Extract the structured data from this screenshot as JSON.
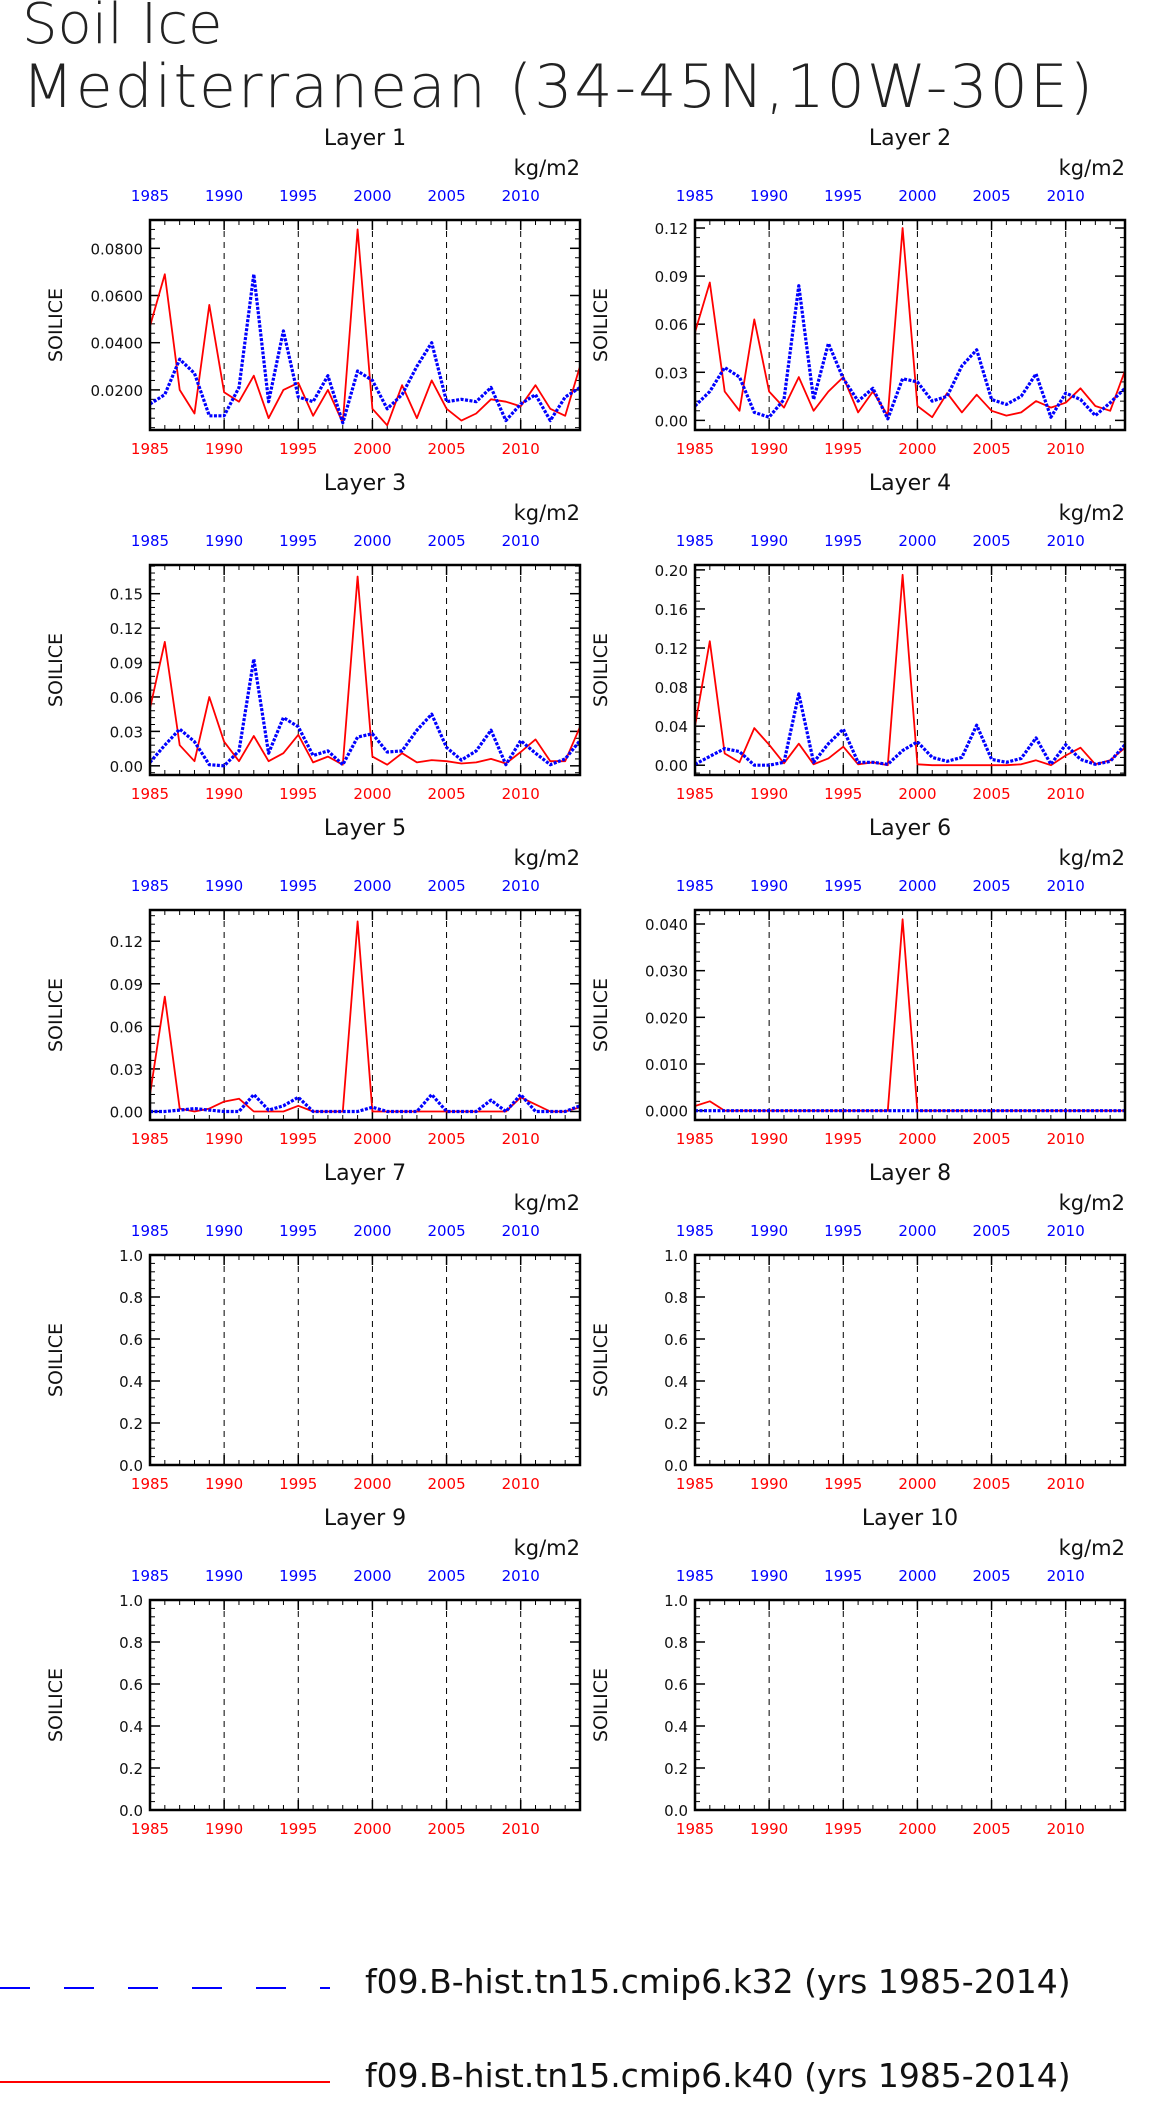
{
  "title": "Soil Ice",
  "subtitle": "Mediterranean (34-45N,10W-30E)",
  "legend": [
    {
      "label": "f09.B-hist.tn15.cmip6.k32 (yrs 1985-2014)",
      "color": "#0000ff",
      "style": "dashed"
    },
    {
      "label": "f09.B-hist.tn15.cmip6.k40 (yrs 1985-2014)",
      "color": "#ff0000",
      "style": "solid"
    }
  ],
  "chart_data": [
    {
      "type": "line",
      "title": "Layer 1",
      "ylabel": "SOILICE",
      "units": "kg/m2",
      "xlim": [
        1985,
        2014
      ],
      "ylim": [
        0.003,
        0.092
      ],
      "yticks": [
        0.02,
        0.04,
        0.06,
        0.08
      ],
      "ytick_labels": [
        "0.0200",
        "0.0400",
        "0.0600",
        "0.0800"
      ],
      "xticks": [
        1985,
        1990,
        1995,
        2000,
        2005,
        2010
      ],
      "x": [
        1985,
        1986,
        1987,
        1988,
        1989,
        1990,
        1991,
        1992,
        1993,
        1994,
        1995,
        1996,
        1997,
        1998,
        1999,
        2000,
        2001,
        2002,
        2003,
        2004,
        2005,
        2006,
        2007,
        2008,
        2009,
        2010,
        2011,
        2012,
        2013,
        2014
      ],
      "series": [
        {
          "name": "f09.B-hist.tn15.cmip6.k32 (yrs 1985-2014)",
          "color": "#0000ff",
          "values": [
            0.014,
            0.018,
            0.033,
            0.027,
            0.009,
            0.009,
            0.021,
            0.069,
            0.015,
            0.045,
            0.017,
            0.015,
            0.026,
            0.006,
            0.028,
            0.024,
            0.012,
            0.018,
            0.03,
            0.04,
            0.015,
            0.016,
            0.015,
            0.021,
            0.007,
            0.014,
            0.018,
            0.007,
            0.017,
            0.021
          ]
        },
        {
          "name": "f09.B-hist.tn15.cmip6.k40 (yrs 1985-2014)",
          "color": "#ff0000",
          "values": [
            0.047,
            0.069,
            0.02,
            0.01,
            0.056,
            0.019,
            0.015,
            0.026,
            0.008,
            0.02,
            0.023,
            0.009,
            0.02,
            0.006,
            0.088,
            0.012,
            0.005,
            0.022,
            0.008,
            0.024,
            0.012,
            0.007,
            0.01,
            0.016,
            0.015,
            0.013,
            0.022,
            0.012,
            0.009,
            0.03
          ]
        }
      ]
    },
    {
      "type": "line",
      "title": "Layer 2",
      "ylabel": "SOILICE",
      "units": "kg/m2",
      "xlim": [
        1985,
        2014
      ],
      "ylim": [
        -0.006,
        0.125
      ],
      "yticks": [
        0,
        0.03,
        0.06,
        0.09,
        0.12
      ],
      "ytick_labels": [
        "0.00",
        "0.03",
        "0.06",
        "0.09",
        "0.12"
      ],
      "xticks": [
        1985,
        1990,
        1995,
        2000,
        2005,
        2010
      ],
      "x": [
        1985,
        1986,
        1987,
        1988,
        1989,
        1990,
        1991,
        1992,
        1993,
        1994,
        1995,
        1996,
        1997,
        1998,
        1999,
        2000,
        2001,
        2002,
        2003,
        2004,
        2005,
        2006,
        2007,
        2008,
        2009,
        2010,
        2011,
        2012,
        2013,
        2014
      ],
      "series": [
        {
          "name": "f09.B-hist.tn15.cmip6.k32 (yrs 1985-2014)",
          "color": "#0000ff",
          "values": [
            0.009,
            0.018,
            0.033,
            0.027,
            0.005,
            0.002,
            0.013,
            0.084,
            0.013,
            0.048,
            0.026,
            0.012,
            0.02,
            0.001,
            0.026,
            0.024,
            0.012,
            0.015,
            0.034,
            0.044,
            0.013,
            0.01,
            0.015,
            0.029,
            0.002,
            0.017,
            0.013,
            0.003,
            0.011,
            0.02
          ]
        },
        {
          "name": "f09.B-hist.tn15.cmip6.k40 (yrs 1985-2014)",
          "color": "#ff0000",
          "values": [
            0.055,
            0.086,
            0.018,
            0.006,
            0.063,
            0.018,
            0.008,
            0.027,
            0.006,
            0.018,
            0.027,
            0.005,
            0.018,
            0.003,
            0.12,
            0.009,
            0.002,
            0.017,
            0.005,
            0.016,
            0.006,
            0.003,
            0.005,
            0.012,
            0.008,
            0.011,
            0.02,
            0.009,
            0.006,
            0.031
          ]
        }
      ]
    },
    {
      "type": "line",
      "title": "Layer 3",
      "ylabel": "SOILICE",
      "units": "kg/m2",
      "xlim": [
        1985,
        2014
      ],
      "ylim": [
        -0.008,
        0.175
      ],
      "yticks": [
        0,
        0.03,
        0.06,
        0.09,
        0.12,
        0.15
      ],
      "ytick_labels": [
        "0.00",
        "0.03",
        "0.06",
        "0.09",
        "0.12",
        "0.15"
      ],
      "xticks": [
        1985,
        1990,
        1995,
        2000,
        2005,
        2010
      ],
      "x": [
        1985,
        1986,
        1987,
        1988,
        1989,
        1990,
        1991,
        1992,
        1993,
        1994,
        1995,
        1996,
        1997,
        1998,
        1999,
        2000,
        2001,
        2002,
        2003,
        2004,
        2005,
        2006,
        2007,
        2008,
        2009,
        2010,
        2011,
        2012,
        2013,
        2014
      ],
      "series": [
        {
          "name": "f09.B-hist.tn15.cmip6.k32 (yrs 1985-2014)",
          "color": "#0000ff",
          "values": [
            0.003,
            0.018,
            0.032,
            0.021,
            0.001,
            0.0,
            0.013,
            0.093,
            0.011,
            0.042,
            0.034,
            0.009,
            0.013,
            0.001,
            0.025,
            0.028,
            0.012,
            0.013,
            0.031,
            0.045,
            0.016,
            0.005,
            0.013,
            0.031,
            0.001,
            0.022,
            0.011,
            0.001,
            0.006,
            0.022
          ]
        },
        {
          "name": "f09.B-hist.tn15.cmip6.k40 (yrs 1985-2014)",
          "color": "#ff0000",
          "values": [
            0.05,
            0.108,
            0.018,
            0.004,
            0.06,
            0.021,
            0.004,
            0.026,
            0.004,
            0.011,
            0.027,
            0.003,
            0.008,
            0.001,
            0.165,
            0.008,
            0.001,
            0.011,
            0.003,
            0.005,
            0.004,
            0.002,
            0.003,
            0.006,
            0.002,
            0.012,
            0.023,
            0.004,
            0.004,
            0.034
          ]
        }
      ]
    },
    {
      "type": "line",
      "title": "Layer 4",
      "ylabel": "SOILICE",
      "units": "kg/m2",
      "xlim": [
        1985,
        2014
      ],
      "ylim": [
        -0.01,
        0.205
      ],
      "yticks": [
        0,
        0.04,
        0.08,
        0.12,
        0.16,
        0.2
      ],
      "ytick_labels": [
        "0.00",
        "0.04",
        "0.08",
        "0.12",
        "0.16",
        "0.20"
      ],
      "xticks": [
        1985,
        1990,
        1995,
        2000,
        2005,
        2010
      ],
      "x": [
        1985,
        1986,
        1987,
        1988,
        1989,
        1990,
        1991,
        1992,
        1993,
        1994,
        1995,
        1996,
        1997,
        1998,
        1999,
        2000,
        2001,
        2002,
        2003,
        2004,
        2005,
        2006,
        2007,
        2008,
        2009,
        2010,
        2011,
        2012,
        2013,
        2014
      ],
      "series": [
        {
          "name": "f09.B-hist.tn15.cmip6.k32 (yrs 1985-2014)",
          "color": "#0000ff",
          "values": [
            0.001,
            0.009,
            0.017,
            0.014,
            0.0,
            0.0,
            0.003,
            0.073,
            0.003,
            0.022,
            0.037,
            0.003,
            0.003,
            0.001,
            0.015,
            0.024,
            0.008,
            0.004,
            0.008,
            0.041,
            0.006,
            0.003,
            0.007,
            0.028,
            0.001,
            0.021,
            0.006,
            0.001,
            0.004,
            0.021
          ]
        },
        {
          "name": "f09.B-hist.tn15.cmip6.k40 (yrs 1985-2014)",
          "color": "#ff0000",
          "values": [
            0.04,
            0.127,
            0.012,
            0.003,
            0.038,
            0.021,
            0.002,
            0.022,
            0.001,
            0.007,
            0.019,
            0.001,
            0.003,
            0.0,
            0.195,
            0.001,
            0.0,
            0.0,
            0.0,
            0.0,
            0.0,
            0.0,
            0.001,
            0.005,
            0.0,
            0.01,
            0.018,
            0.001,
            0.005,
            0.018
          ]
        }
      ]
    },
    {
      "type": "line",
      "title": "Layer 5",
      "ylabel": "SOILICE",
      "units": "kg/m2",
      "xlim": [
        1985,
        2014
      ],
      "ylim": [
        -0.006,
        0.142
      ],
      "yticks": [
        0,
        0.03,
        0.06,
        0.09,
        0.12
      ],
      "ytick_labels": [
        "0.00",
        "0.03",
        "0.06",
        "0.09",
        "0.12"
      ],
      "xticks": [
        1985,
        1990,
        1995,
        2000,
        2005,
        2010
      ],
      "x": [
        1985,
        1986,
        1987,
        1988,
        1989,
        1990,
        1991,
        1992,
        1993,
        1994,
        1995,
        1996,
        1997,
        1998,
        1999,
        2000,
        2001,
        2002,
        2003,
        2004,
        2005,
        2006,
        2007,
        2008,
        2009,
        2010,
        2011,
        2012,
        2013,
        2014
      ],
      "series": [
        {
          "name": "f09.B-hist.tn15.cmip6.k32 (yrs 1985-2014)",
          "color": "#0000ff",
          "values": [
            0.0,
            0.0,
            0.001,
            0.002,
            0.001,
            0.0,
            0.0,
            0.012,
            0.001,
            0.004,
            0.01,
            0.0,
            0.0,
            0.0,
            0.0,
            0.003,
            0.0,
            0.0,
            0.0,
            0.012,
            0.0,
            0.0,
            0.0,
            0.008,
            0.0,
            0.012,
            0.0,
            0.0,
            0.0,
            0.004
          ]
        },
        {
          "name": "f09.B-hist.tn15.cmip6.k40 (yrs 1985-2014)",
          "color": "#ff0000",
          "values": [
            0.012,
            0.081,
            0.002,
            0.0,
            0.002,
            0.007,
            0.009,
            0.0,
            0.0,
            0.0,
            0.004,
            0.0,
            0.0,
            0.0,
            0.134,
            0.0,
            0.0,
            0.0,
            0.0,
            0.0,
            0.0,
            0.0,
            0.0,
            0.0,
            0.0,
            0.01,
            0.005,
            0.0,
            0.0,
            0.003
          ]
        }
      ]
    },
    {
      "type": "line",
      "title": "Layer 6",
      "ylabel": "SOILICE",
      "units": "kg/m2",
      "xlim": [
        1985,
        2014
      ],
      "ylim": [
        -0.002,
        0.043
      ],
      "yticks": [
        0,
        0.01,
        0.02,
        0.03,
        0.04
      ],
      "ytick_labels": [
        "0.000",
        "0.010",
        "0.020",
        "0.030",
        "0.040"
      ],
      "xticks": [
        1985,
        1990,
        1995,
        2000,
        2005,
        2010
      ],
      "x": [
        1985,
        1986,
        1987,
        1988,
        1989,
        1990,
        1991,
        1992,
        1993,
        1994,
        1995,
        1996,
        1997,
        1998,
        1999,
        2000,
        2001,
        2002,
        2003,
        2004,
        2005,
        2006,
        2007,
        2008,
        2009,
        2010,
        2011,
        2012,
        2013,
        2014
      ],
      "series": [
        {
          "name": "f09.B-hist.tn15.cmip6.k32 (yrs 1985-2014)",
          "color": "#0000ff",
          "values": [
            0,
            0,
            0,
            0,
            0,
            0,
            0,
            0,
            0,
            0,
            0,
            0,
            0,
            0,
            0,
            0,
            0,
            0,
            0,
            0,
            0,
            0,
            0,
            0,
            0,
            0,
            0,
            0,
            0,
            0
          ]
        },
        {
          "name": "f09.B-hist.tn15.cmip6.k40 (yrs 1985-2014)",
          "color": "#ff0000",
          "values": [
            0.001,
            0.002,
            0,
            0,
            0,
            0,
            0,
            0,
            0,
            0,
            0,
            0,
            0,
            0,
            0.041,
            0,
            0,
            0,
            0,
            0,
            0,
            0,
            0,
            0,
            0,
            0,
            0,
            0,
            0,
            0
          ]
        }
      ]
    },
    {
      "type": "line",
      "title": "Layer 7",
      "ylabel": "SOILICE",
      "units": "kg/m2",
      "xlim": [
        1985,
        2014
      ],
      "ylim": [
        0,
        1
      ],
      "yticks": [
        0,
        0.2,
        0.4,
        0.6,
        0.8,
        1.0
      ],
      "ytick_labels": [
        "0.0",
        "0.2",
        "0.4",
        "0.6",
        "0.8",
        "1.0"
      ],
      "xticks": [
        1985,
        1990,
        1995,
        2000,
        2005,
        2010
      ],
      "x": [],
      "series": []
    },
    {
      "type": "line",
      "title": "Layer 8",
      "ylabel": "SOILICE",
      "units": "kg/m2",
      "xlim": [
        1985,
        2014
      ],
      "ylim": [
        0,
        1
      ],
      "yticks": [
        0,
        0.2,
        0.4,
        0.6,
        0.8,
        1.0
      ],
      "ytick_labels": [
        "0.0",
        "0.2",
        "0.4",
        "0.6",
        "0.8",
        "1.0"
      ],
      "xticks": [
        1985,
        1990,
        1995,
        2000,
        2005,
        2010
      ],
      "x": [],
      "series": []
    },
    {
      "type": "line",
      "title": "Layer 9",
      "ylabel": "SOILICE",
      "units": "kg/m2",
      "xlim": [
        1985,
        2014
      ],
      "ylim": [
        0,
        1
      ],
      "yticks": [
        0,
        0.2,
        0.4,
        0.6,
        0.8,
        1.0
      ],
      "ytick_labels": [
        "0.0",
        "0.2",
        "0.4",
        "0.6",
        "0.8",
        "1.0"
      ],
      "xticks": [
        1985,
        1990,
        1995,
        2000,
        2005,
        2010
      ],
      "x": [],
      "series": []
    },
    {
      "type": "line",
      "title": "Layer 10",
      "ylabel": "SOILICE",
      "units": "kg/m2",
      "xlim": [
        1985,
        2014
      ],
      "ylim": [
        0,
        1
      ],
      "yticks": [
        0,
        0.2,
        0.4,
        0.6,
        0.8,
        1.0
      ],
      "ytick_labels": [
        "0.0",
        "0.2",
        "0.4",
        "0.6",
        "0.8",
        "1.0"
      ],
      "xticks": [
        1985,
        1990,
        1995,
        2000,
        2005,
        2010
      ],
      "x": [],
      "series": []
    }
  ]
}
